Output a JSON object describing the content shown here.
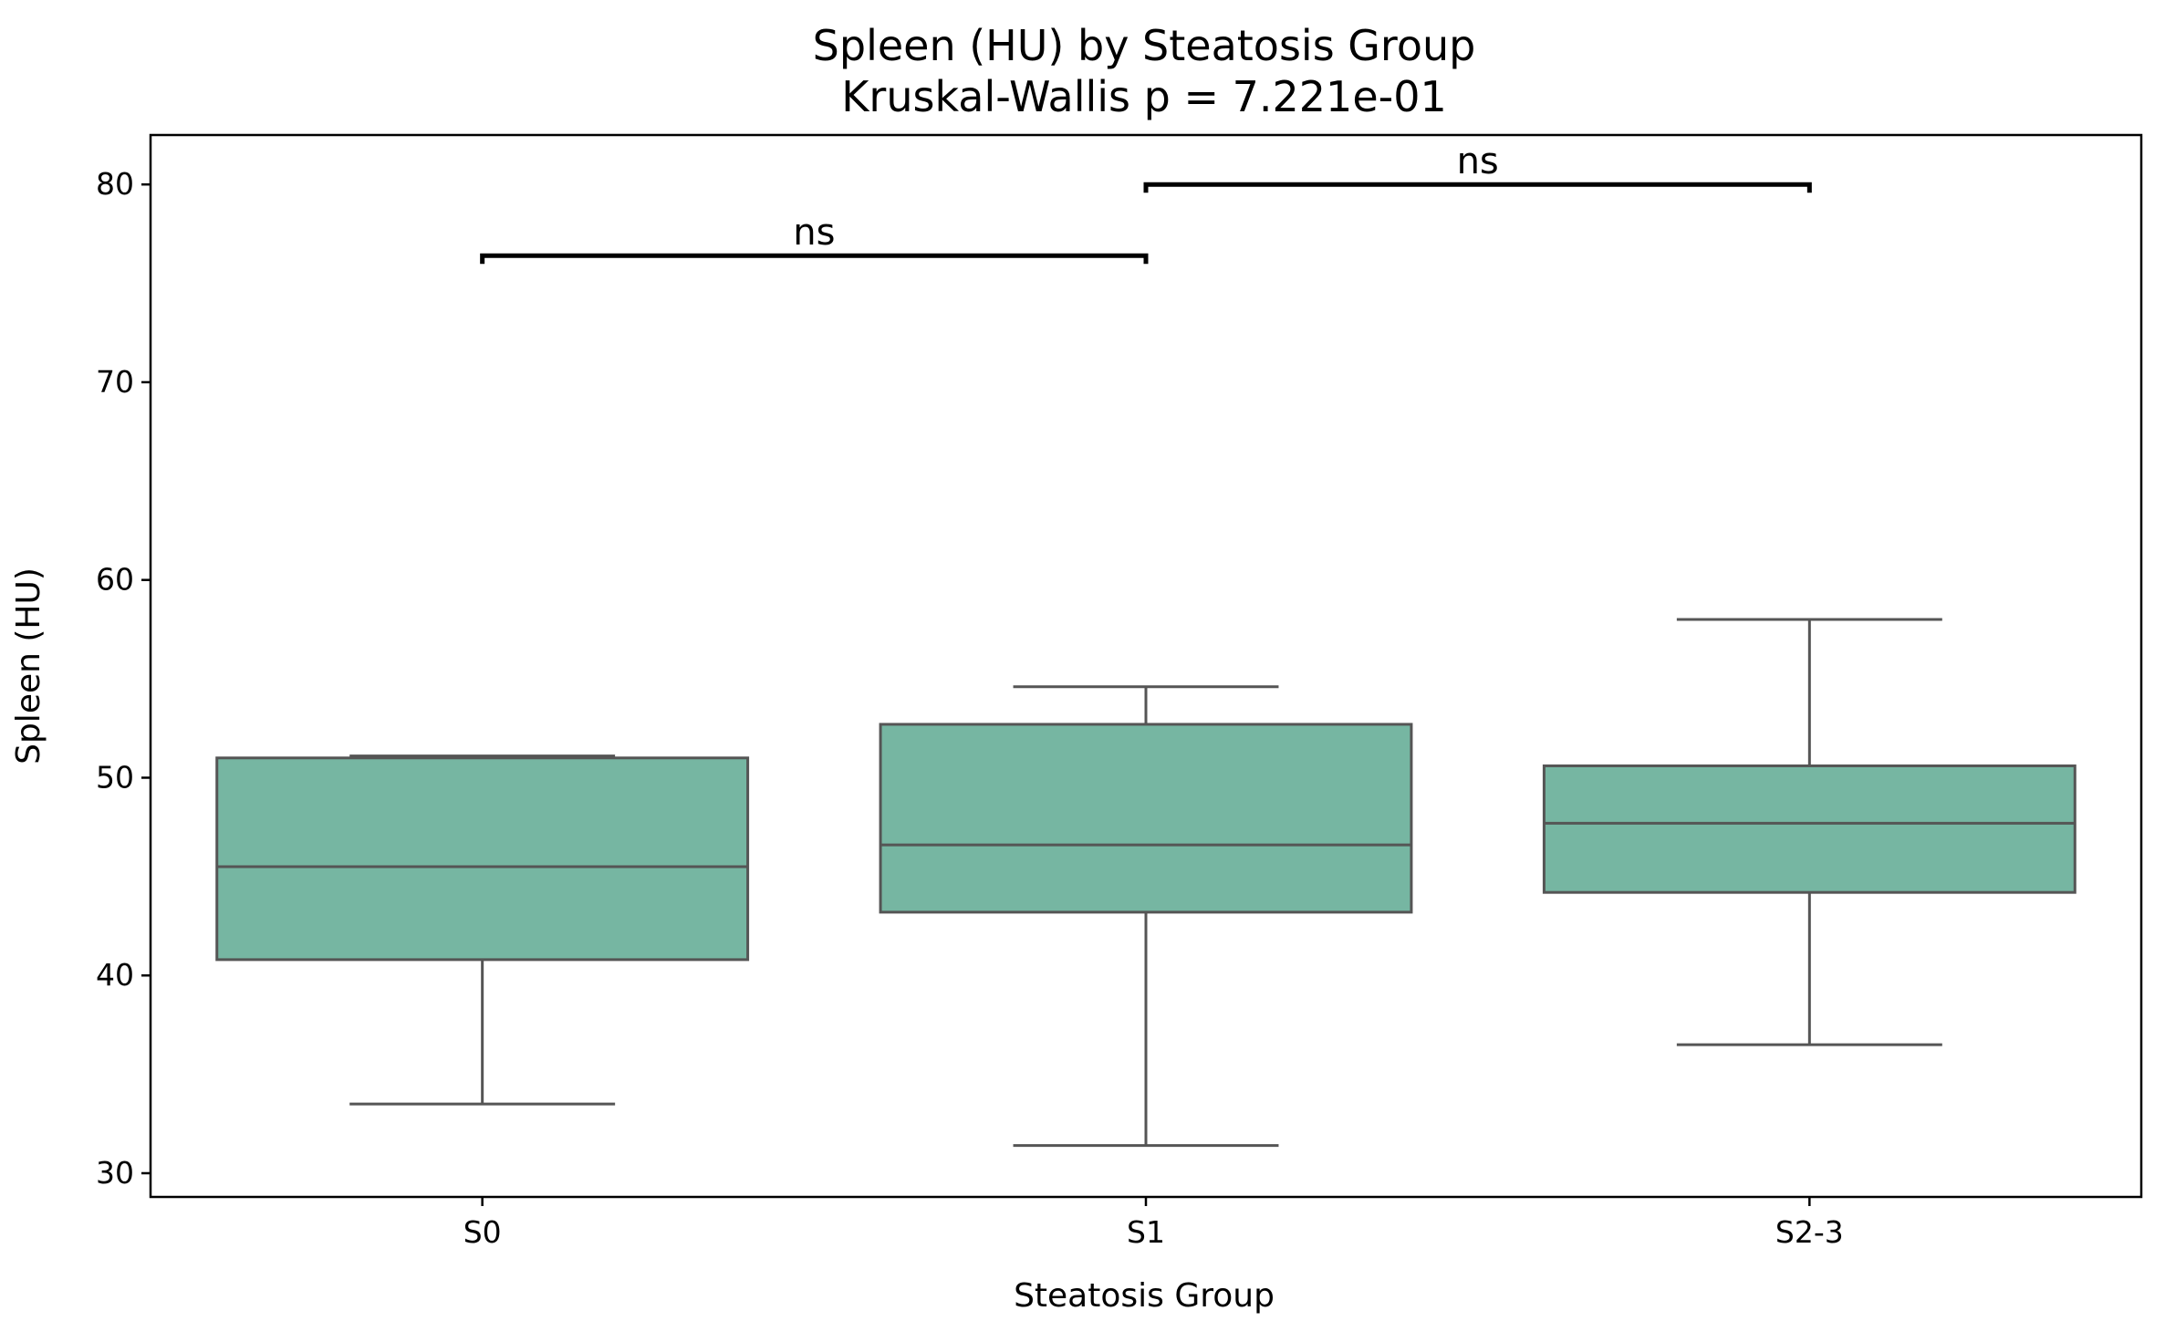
{
  "chart_data": {
    "type": "box",
    "title": "Spleen (HU) by Steatosis Group",
    "subtitle": "Kruskal-Wallis p = 7.221e-01",
    "xlabel": "Steatosis Group",
    "ylabel": "Spleen (HU)",
    "ylim": [
      28.8,
      82.5
    ],
    "yticks": [
      30,
      40,
      50,
      60,
      70,
      80
    ],
    "categories": [
      "S0",
      "S1",
      "S2-3"
    ],
    "box_color": "#76b6a2",
    "edge_color": "#555555",
    "boxes": [
      {
        "category": "S0",
        "whisker_low": 33.5,
        "q1": 40.8,
        "median": 45.5,
        "q3": 51.0,
        "whisker_high": 51.1
      },
      {
        "category": "S1",
        "whisker_low": 31.4,
        "q1": 43.2,
        "median": 46.6,
        "q3": 52.7,
        "whisker_high": 54.6
      },
      {
        "category": "S2-3",
        "whisker_low": 36.5,
        "q1": 44.2,
        "median": 47.7,
        "q3": 50.6,
        "whisker_high": 58.0
      }
    ],
    "annotations": [
      {
        "from": "S0",
        "to": "S1",
        "y": 76.4,
        "label": "ns"
      },
      {
        "from": "S1",
        "to": "S2-3",
        "y": 80.0,
        "label": "ns"
      }
    ],
    "grid": false,
    "legend": "none"
  }
}
